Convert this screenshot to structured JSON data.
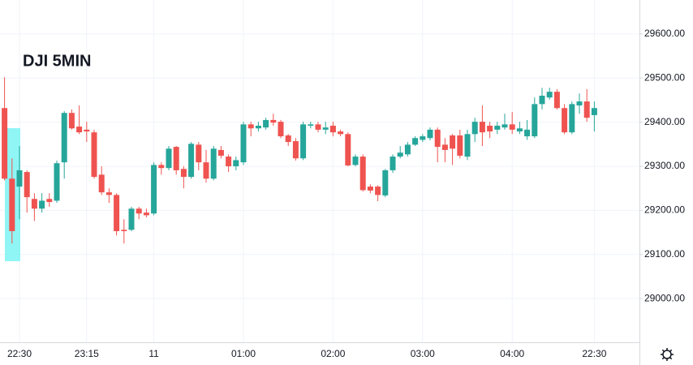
{
  "chart_data": {
    "type": "candlestick",
    "title": "DJI 5MIN",
    "categories": [
      null,
      null,
      "22:30",
      null,
      null,
      null,
      null,
      null,
      null,
      null,
      null,
      "23:15",
      null,
      null,
      null,
      null,
      null,
      null,
      null,
      null,
      "11",
      null,
      null,
      null,
      null,
      null,
      null,
      null,
      null,
      null,
      null,
      null,
      "01:00",
      null,
      null,
      null,
      null,
      null,
      null,
      null,
      null,
      null,
      null,
      null,
      "02:00",
      null,
      null,
      null,
      null,
      null,
      null,
      null,
      null,
      null,
      null,
      null,
      "03:00",
      null,
      null,
      null,
      null,
      null,
      null,
      null,
      null,
      null,
      null,
      null,
      "04:00",
      null,
      null,
      null,
      null,
      null,
      null,
      null,
      null,
      null,
      null,
      "22:30"
    ],
    "open": [
      29432,
      29272,
      29254,
      29287,
      29226,
      29204,
      29226,
      29222,
      29309,
      29421,
      29390,
      29383,
      29377,
      29281,
      29241,
      29235,
      29156,
      29156,
      29204,
      29195,
      29193,
      29303,
      29296,
      29344,
      29294,
      29276,
      29349,
      29309,
      29272,
      29337,
      29322,
      29300,
      29309,
      29395,
      29386,
      29388,
      29405,
      29401,
      29370,
      29357,
      29318,
      29392,
      29395,
      29383,
      29392,
      29379,
      29373,
      29303,
      29322,
      29254,
      29254,
      29234,
      29291,
      29322,
      29327,
      29349,
      29360,
      29364,
      29383,
      29349,
      29370,
      29370,
      29322,
      29373,
      29401,
      29392,
      29383,
      29388,
      29395,
      29379,
      29368,
      29368,
      29441,
      29456,
      29469,
      29432,
      29377,
      29438,
      29447,
      29416
    ],
    "high": [
      29502,
      29318,
      29346,
      29291,
      29239,
      29239,
      29239,
      29313,
      29425,
      29429,
      29438,
      29401,
      29383,
      29300,
      29250,
      29239,
      29180,
      29208,
      29208,
      29204,
      29309,
      29309,
      29346,
      29346,
      29300,
      29355,
      29355,
      29337,
      29346,
      29346,
      29327,
      29322,
      29401,
      29401,
      29401,
      29410,
      29419,
      29405,
      29373,
      29364,
      29401,
      29401,
      29401,
      29401,
      29401,
      29383,
      29377,
      29327,
      29327,
      29259,
      29257,
      29294,
      29327,
      29346,
      29355,
      29368,
      29373,
      29388,
      29388,
      29364,
      29373,
      29383,
      29383,
      29410,
      29438,
      29401,
      29401,
      29419,
      29423,
      29401,
      29405,
      29456,
      29478,
      29478,
      29475,
      29441,
      29447,
      29465,
      29475,
      29447
    ],
    "low": [
      29268,
      29125,
      29180,
      29195,
      29176,
      29195,
      29208,
      29217,
      29272,
      29383,
      29373,
      29355,
      29272,
      29235,
      29217,
      29143,
      29125,
      29153,
      29180,
      29184,
      29189,
      29281,
      29291,
      29281,
      29250,
      29272,
      29291,
      29263,
      29268,
      29318,
      29287,
      29291,
      29303,
      29368,
      29379,
      29383,
      29392,
      29364,
      29346,
      29313,
      29314,
      29386,
      29377,
      29373,
      29368,
      29368,
      29300,
      29300,
      29243,
      29239,
      29221,
      29230,
      29285,
      29318,
      29322,
      29346,
      29355,
      29359,
      29309,
      29309,
      29303,
      29318,
      29314,
      29355,
      29346,
      29364,
      29373,
      29383,
      29373,
      29373,
      29360,
      29364,
      29429,
      29451,
      29429,
      29373,
      29373,
      29419,
      29401,
      29379
    ],
    "close": [
      29272,
      29153,
      29291,
      29230,
      29204,
      29222,
      29219,
      29307,
      29421,
      29386,
      29377,
      29379,
      29276,
      29241,
      29235,
      29153,
      29153,
      29204,
      29193,
      29189,
      29303,
      29296,
      29340,
      29291,
      29276,
      29351,
      29309,
      29272,
      29340,
      29324,
      29300,
      29314,
      29395,
      29386,
      29392,
      29405,
      29399,
      29368,
      29355,
      29318,
      29395,
      29395,
      29383,
      29388,
      29377,
      29373,
      29302,
      29322,
      29246,
      29245,
      29235,
      29291,
      29322,
      29331,
      29349,
      29364,
      29368,
      29383,
      29344,
      29337,
      29340,
      29324,
      29373,
      29401,
      29377,
      29379,
      29392,
      29395,
      29383,
      29386,
      29383,
      29441,
      29460,
      29469,
      29432,
      29377,
      29441,
      29447,
      29410,
      29432
    ],
    "up_color": "#26a69a",
    "down_color": "#ef5350",
    "ylim": [
      28901,
      29677
    ],
    "yticks": [
      {
        "value": 29000,
        "label": "29000.00"
      },
      {
        "value": 29100,
        "label": "29100.00"
      },
      {
        "value": 29200,
        "label": "29200.00"
      },
      {
        "value": 29300,
        "label": "29300.00"
      },
      {
        "value": 29400,
        "label": "29400.00"
      },
      {
        "value": 29500,
        "label": "29500.00"
      },
      {
        "value": 29600,
        "label": "29600.00"
      }
    ],
    "grid": true
  }
}
